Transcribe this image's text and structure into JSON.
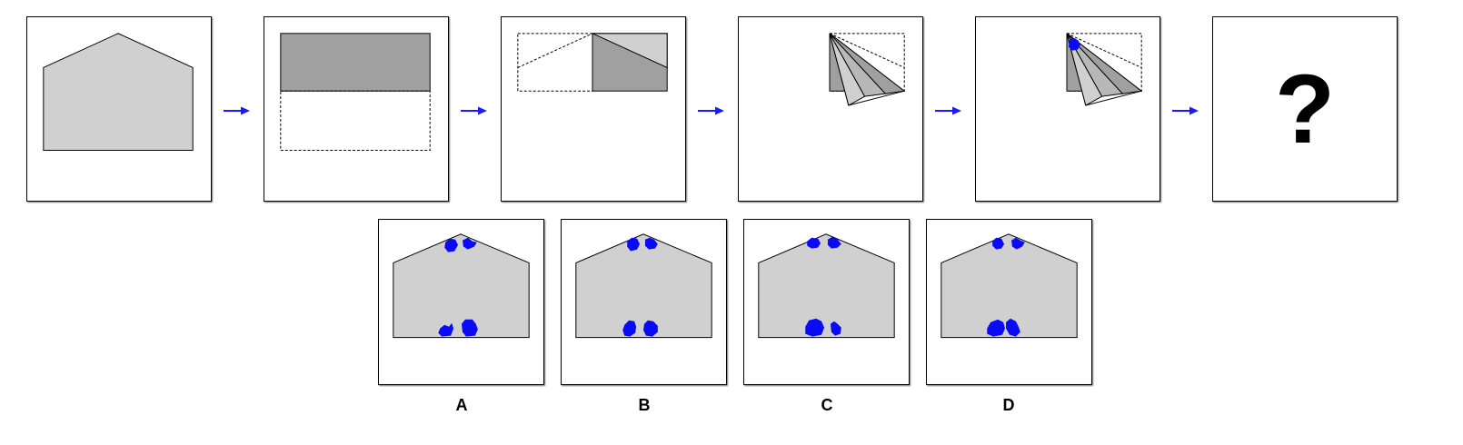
{
  "question_mark": "?",
  "options": [
    {
      "label": "A"
    },
    {
      "label": "B"
    },
    {
      "label": "C"
    },
    {
      "label": "D"
    }
  ],
  "colors": {
    "paper_light": "#d0d0d0",
    "paper_dark": "#a0a0a0",
    "paper_mid": "#b8b8b8",
    "hole": "#0a0af5",
    "arrow": "#1a1aff",
    "outline": "#000000"
  }
}
